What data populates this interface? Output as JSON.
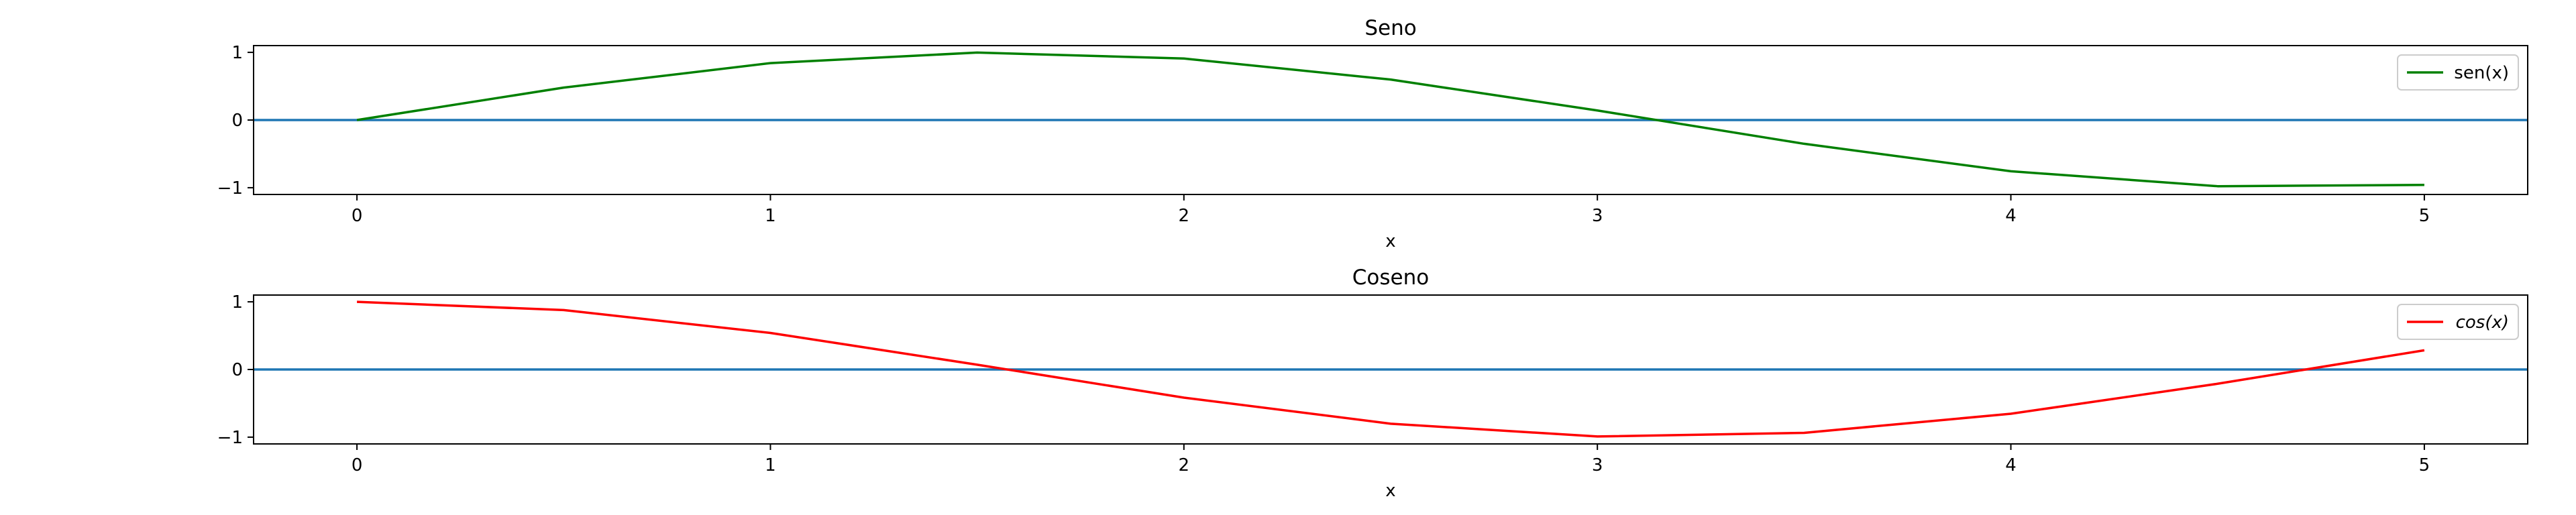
{
  "chart_data": [
    {
      "type": "line",
      "title": "Seno",
      "xlabel": "x",
      "ylabel": "",
      "xlim": [
        -0.25,
        5.25
      ],
      "ylim": [
        -1.1,
        1.1
      ],
      "x_ticks": [
        0,
        1,
        2,
        3,
        4,
        5
      ],
      "y_ticks": [
        -1,
        0,
        1
      ],
      "x_tick_labels": [
        "0",
        "1",
        "2",
        "3",
        "4",
        "5"
      ],
      "y_tick_labels": [
        "−1",
        "0",
        "1"
      ],
      "grid": false,
      "legend_position": "top-right",
      "reference_line": {
        "y": 0,
        "color": "#1f77b4"
      },
      "series": [
        {
          "name": "sen(x)",
          "color": "#008000",
          "x": [
            0,
            0.5,
            1,
            1.5,
            2,
            2.5,
            3,
            3.5,
            4,
            4.5,
            5
          ],
          "y": [
            0,
            0.479,
            0.841,
            0.997,
            0.909,
            0.598,
            0.141,
            -0.351,
            -0.757,
            -0.978,
            -0.959
          ]
        }
      ]
    },
    {
      "type": "line",
      "title": "Coseno",
      "xlabel": "x",
      "ylabel": "",
      "xlim": [
        -0.25,
        5.25
      ],
      "ylim": [
        -1.1,
        1.1
      ],
      "x_ticks": [
        0,
        1,
        2,
        3,
        4,
        5
      ],
      "y_ticks": [
        -1,
        0,
        1
      ],
      "x_tick_labels": [
        "0",
        "1",
        "2",
        "3",
        "4",
        "5"
      ],
      "y_tick_labels": [
        "−1",
        "0",
        "1"
      ],
      "grid": false,
      "legend_position": "top-right",
      "reference_line": {
        "y": 0,
        "color": "#1f77b4"
      },
      "series": [
        {
          "name": "cos(x)",
          "name_style": "italic",
          "color": "#ff0000",
          "x": [
            0,
            0.5,
            1,
            1.5,
            2,
            2.5,
            3,
            3.5,
            4,
            4.5,
            5
          ],
          "y": [
            1,
            0.878,
            0.54,
            0.071,
            -0.416,
            -0.801,
            -0.99,
            -0.936,
            -0.654,
            -0.211,
            0.284
          ]
        }
      ]
    }
  ]
}
